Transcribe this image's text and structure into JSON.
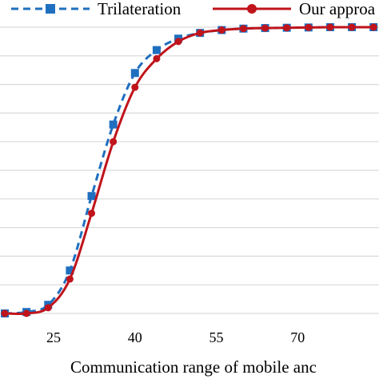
{
  "chart_data": {
    "type": "line",
    "xlabel": "Communication range of mobile anc",
    "x_ticks": [
      25,
      40,
      55,
      70
    ],
    "xlim": [
      16,
      85
    ],
    "ylim": [
      0,
      10
    ],
    "grid": "horizontal",
    "legend_placement": "top",
    "series": [
      {
        "name": "Trilateration",
        "color": "#1f6fbf",
        "line_style": "dashed",
        "marker": "square",
        "x": [
          16,
          20,
          24,
          28,
          32,
          36,
          40,
          44,
          48,
          52,
          56,
          60,
          64,
          68,
          72,
          76,
          80,
          84
        ],
        "y": [
          0.0,
          0.05,
          0.3,
          1.5,
          4.1,
          6.6,
          8.4,
          9.2,
          9.6,
          9.8,
          9.9,
          9.95,
          9.97,
          9.98,
          9.99,
          10.0,
          10.0,
          10.0
        ]
      },
      {
        "name": "Our approa",
        "color": "#c0141c",
        "line_style": "solid",
        "marker": "circle",
        "x": [
          16,
          20,
          24,
          28,
          32,
          36,
          40,
          44,
          48,
          52,
          56,
          60,
          64,
          68,
          72,
          76,
          80,
          84
        ],
        "y": [
          0.0,
          0.0,
          0.2,
          1.2,
          3.5,
          6.0,
          7.9,
          8.9,
          9.5,
          9.8,
          9.9,
          9.95,
          9.97,
          9.98,
          9.99,
          10.0,
          10.0,
          10.0
        ]
      }
    ]
  }
}
